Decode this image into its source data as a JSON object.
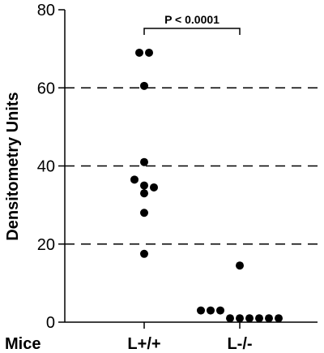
{
  "chart_data": {
    "type": "scatter",
    "title": "",
    "xlabel": "Mice",
    "ylabel": "Densitometry Units",
    "ylim": [
      0,
      80
    ],
    "yticks": [
      0,
      20,
      40,
      60,
      80
    ],
    "categories": [
      "L+/+",
      "L-/-"
    ],
    "grid": "dashed horizontal at 20, 40, 60",
    "series": [
      {
        "category": "L+/+",
        "values": [
          69,
          69,
          60.5,
          41,
          36.5,
          35,
          34.5,
          33,
          28,
          17.5
        ]
      },
      {
        "category": "L-/-",
        "values": [
          14.5,
          3,
          3,
          3,
          1,
          1,
          1,
          1,
          1,
          1
        ]
      }
    ],
    "annotation": {
      "text": "P < 0.0001",
      "between": [
        "L+/+",
        "L-/-"
      ]
    },
    "marker_color": "#000000"
  }
}
